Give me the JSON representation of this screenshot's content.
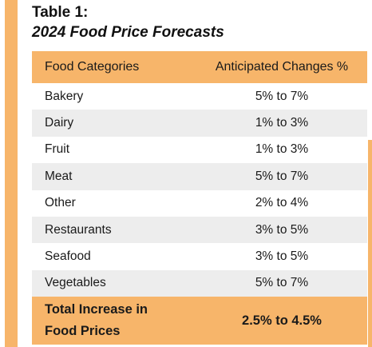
{
  "heading": {
    "label": "Table 1:",
    "title": "2024 Food Price Forecasts"
  },
  "table": {
    "headers": [
      "Food Categories",
      "Anticipated Changes %"
    ],
    "rows": [
      {
        "category": "Bakery",
        "change": "5% to 7%"
      },
      {
        "category": "Dairy",
        "change": "1% to 3%"
      },
      {
        "category": "Fruit",
        "change": "1% to 3%"
      },
      {
        "category": "Meat",
        "change": "5% to 7%"
      },
      {
        "category": "Other",
        "change": "2% to 4%"
      },
      {
        "category": "Restaurants",
        "change": "3% to 5%"
      },
      {
        "category": "Seafood",
        "change": "3% to 5%"
      },
      {
        "category": "Vegetables",
        "change": "5% to 7%"
      }
    ],
    "total": {
      "label_line1": "Total Increase in",
      "label_line2": "Food Prices",
      "value": "2.5% to 4.5%"
    }
  },
  "colors": {
    "accent": "#f7b56a",
    "stripe": "#ededed"
  }
}
